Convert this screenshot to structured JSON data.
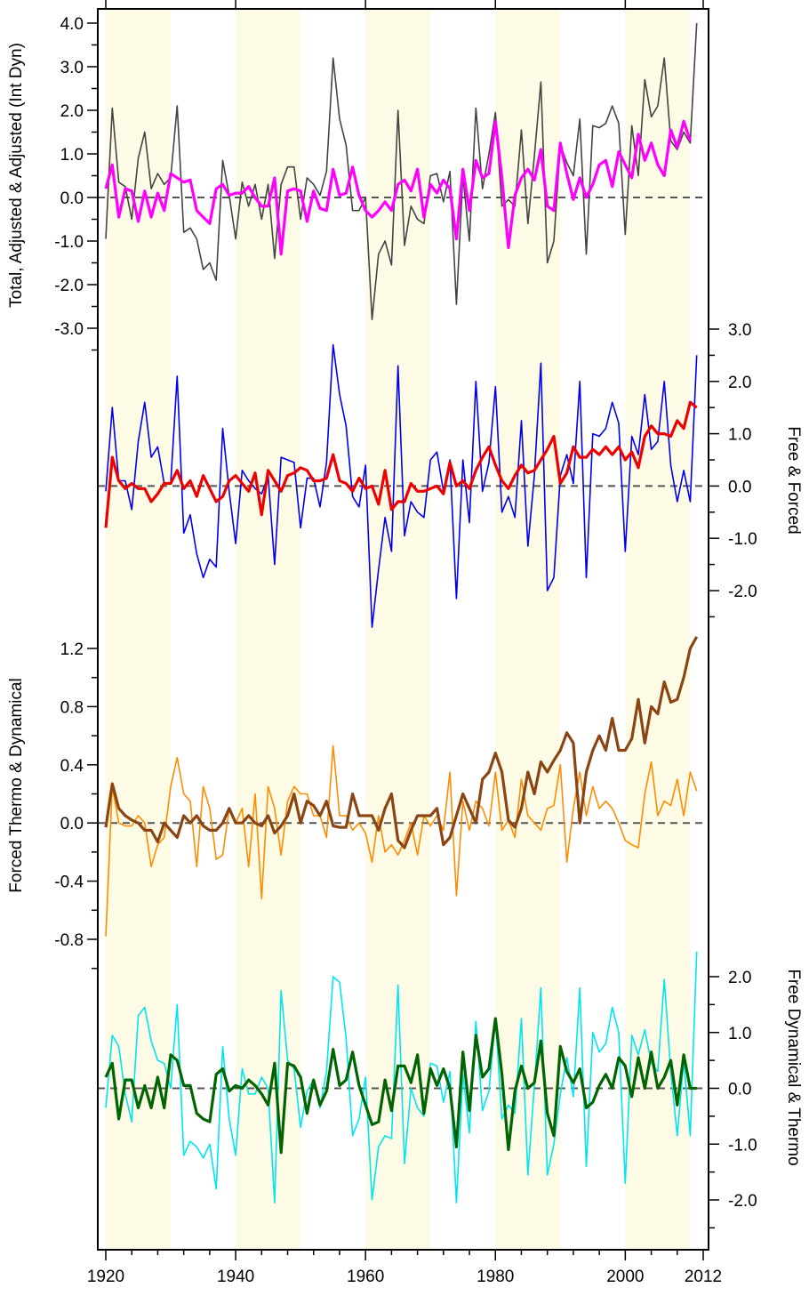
{
  "chart_data": {
    "type": "line",
    "x_range": [
      1920,
      2012
    ],
    "x_ticks": [
      1920,
      1940,
      1960,
      1980,
      2000,
      2012
    ],
    "x_tick_labels": [
      "1920",
      "1940",
      "1960",
      "1980",
      "2000",
      "2012"
    ],
    "shaded_decades": [
      [
        1920,
        1930
      ],
      [
        1940,
        1950
      ],
      [
        1960,
        1970
      ],
      [
        1980,
        1990
      ],
      [
        2000,
        2010
      ]
    ],
    "shade_color": "#fdfbe6",
    "panels": [
      {
        "id": "p1",
        "ylabel": "Total, Adjusted & Adjusted (Int Dyn)",
        "axis_side": "left",
        "ylim": [
          -3.0,
          4.0
        ],
        "y_ticks": [
          -3.0,
          -2.0,
          -1.0,
          0.0,
          1.0,
          2.0,
          3.0,
          4.0
        ],
        "y_tick_labels": [
          "-3.0",
          "-2.0",
          "-1.0",
          "0.0",
          "1.0",
          "2.0",
          "3.0",
          "4.0"
        ],
        "series": [
          {
            "color": "#444444",
            "width": 1.6,
            "values": [
              -0.95,
              2.05,
              0.35,
              0.25,
              -0.5,
              0.9,
              1.5,
              0.2,
              0.55,
              0.3,
              0.45,
              2.1,
              -0.8,
              -0.7,
              -0.95,
              -1.65,
              -1.5,
              -1.9,
              0.85,
              0.05,
              -0.95,
              0.35,
              -0.2,
              0.3,
              -0.5,
              0.3,
              -1.4,
              0.3,
              0.7,
              0.7,
              -0.5,
              0.45,
              0.3,
              0.05,
              0.6,
              3.2,
              1.8,
              1.2,
              -0.3,
              -0.3,
              0.0,
              -2.8,
              -1.3,
              -1.0,
              -1.55,
              2.0,
              -1.1,
              -0.2,
              -0.5,
              -0.6,
              0.5,
              0.55,
              -0.1,
              0.6,
              -2.45,
              0.5,
              -1.0,
              2.05,
              0.2,
              1.0,
              1.95,
              -0.2,
              -0.05,
              -0.2,
              1.55,
              -0.6,
              0.95,
              2.65,
              -1.5,
              -1.0,
              1.2,
              0.8,
              0.5,
              1.8,
              -1.3,
              1.65,
              1.6,
              1.7,
              2.1,
              1.7,
              -0.85,
              1.65,
              0.5,
              2.7,
              1.85,
              2.1,
              3.2,
              1.3,
              1.1,
              1.5,
              1.25,
              4.0
            ]
          },
          {
            "color": "#ff00ff",
            "width": 3.2,
            "values": [
              0.2,
              0.75,
              -0.45,
              0.2,
              0.15,
              -0.55,
              0.15,
              -0.45,
              0.1,
              -0.3,
              0.55,
              0.45,
              0.35,
              0.4,
              -0.3,
              -0.45,
              -0.6,
              0.2,
              0.3,
              0.05,
              0.1,
              0.1,
              0.25,
              0.0,
              -0.2,
              -0.2,
              0.45,
              -1.3,
              0.15,
              0.2,
              0.15,
              -0.55,
              0.15,
              -0.25,
              -0.3,
              0.65,
              0.05,
              0.1,
              0.7,
              0.05,
              -0.3,
              -0.45,
              -0.3,
              -0.1,
              -0.3,
              0.3,
              0.4,
              0.15,
              0.65,
              -0.45,
              0.3,
              0.1,
              0.4,
              0.2,
              -0.95,
              0.65,
              -0.3,
              0.85,
              0.45,
              0.55,
              1.75,
              0.45,
              -1.15,
              0.05,
              0.45,
              0.65,
              0.4,
              1.1,
              -0.2,
              -0.3,
              1.25,
              0.55,
              -0.05,
              0.45,
              0.0,
              0.3,
              0.75,
              0.85,
              0.25,
              1.05,
              0.75,
              0.45,
              1.45,
              0.85,
              1.25,
              0.75,
              0.5,
              1.55,
              1.15,
              1.75,
              1.3
            ]
          }
        ]
      },
      {
        "id": "p2",
        "ylabel": "Free & Forced",
        "axis_side": "right",
        "ylim": [
          -3.0,
          3.0
        ],
        "y_ticks": [
          -2.0,
          -1.0,
          0.0,
          1.0,
          2.0,
          3.0
        ],
        "y_tick_labels": [
          "-2.0",
          "-1.0",
          "0.0",
          "1.0",
          "2.0",
          "3.0"
        ],
        "series": [
          {
            "color": "#0000ee",
            "width": 1.6,
            "values": [
              -0.1,
              1.5,
              0.1,
              0.1,
              -0.45,
              0.85,
              1.6,
              0.55,
              0.75,
              0.05,
              0.05,
              2.1,
              -0.9,
              -0.55,
              -1.3,
              -1.75,
              -1.4,
              -1.55,
              1.1,
              -0.1,
              -1.1,
              0.3,
              0.1,
              -0.05,
              -0.15,
              0.2,
              -1.5,
              0.55,
              0.5,
              0.45,
              -0.8,
              0.15,
              0.15,
              -0.4,
              0.45,
              2.7,
              1.75,
              1.15,
              -0.2,
              -0.4,
              0.4,
              -2.7,
              -1.6,
              -0.6,
              -1.25,
              2.3,
              -0.95,
              -0.3,
              -0.5,
              -0.6,
              0.5,
              0.65,
              -0.1,
              0.5,
              -2.15,
              0.5,
              -0.7,
              2.0,
              -0.1,
              0.45,
              1.9,
              -0.5,
              -0.2,
              -0.6,
              1.25,
              -1.15,
              0.2,
              2.35,
              -2.0,
              -1.75,
              0.2,
              0.6,
              0.05,
              2.0,
              -1.75,
              1.0,
              0.95,
              1.1,
              1.6,
              1.2,
              -1.25,
              0.95,
              0.6,
              1.75,
              0.7,
              0.85,
              2.0,
              0.4,
              -0.3,
              0.3,
              -0.3,
              2.5
            ]
          },
          {
            "color": "#ee0000",
            "width": 3.2,
            "values": [
              -0.8,
              0.55,
              0.1,
              -0.05,
              0.05,
              -0.05,
              -0.05,
              -0.3,
              -0.15,
              0.05,
              0.05,
              0.3,
              -0.05,
              0.1,
              -0.2,
              0.2,
              -0.05,
              -0.3,
              -0.2,
              0.1,
              0.2,
              0.05,
              -0.1,
              0.25,
              -0.55,
              0.3,
              0.1,
              -0.1,
              0.2,
              0.25,
              0.35,
              0.3,
              0.1,
              0.1,
              0.15,
              0.6,
              0.1,
              0.05,
              -0.1,
              0.15,
              -0.05,
              0.0,
              -0.35,
              0.3,
              -0.45,
              -0.3,
              -0.3,
              0.05,
              -0.1,
              -0.1,
              -0.05,
              0.0,
              -0.15,
              0.45,
              0.0,
              0.1,
              -0.05,
              0.3,
              0.55,
              0.75,
              0.4,
              0.1,
              -0.05,
              0.2,
              0.4,
              0.25,
              0.3,
              0.5,
              0.7,
              0.95,
              0.05,
              0.25,
              0.75,
              0.55,
              0.55,
              0.7,
              0.6,
              0.75,
              0.6,
              0.75,
              0.5,
              0.65,
              0.35,
              0.95,
              1.15,
              1.0,
              1.0,
              0.95,
              1.25,
              1.1,
              1.6,
              1.5
            ]
          }
        ]
      },
      {
        "id": "p3",
        "ylabel": "Forced Thermo & Dynamical",
        "axis_side": "left",
        "ylim": [
          -0.8,
          1.2
        ],
        "y_ticks": [
          -0.8,
          -0.4,
          0.0,
          0.4,
          0.8,
          1.2
        ],
        "y_tick_labels": [
          "-0.8",
          "-0.4",
          "0.0",
          "0.4",
          "0.8",
          "1.2"
        ],
        "series": [
          {
            "color": "#ff8c00",
            "width": 1.6,
            "values": [
              -0.78,
              0.25,
              0.0,
              -0.02,
              -0.02,
              0.05,
              0.0,
              -0.3,
              -0.15,
              -0.1,
              0.25,
              0.45,
              0.2,
              0.15,
              -0.3,
              0.25,
              0.1,
              -0.25,
              -0.22,
              0.1,
              0.0,
              0.1,
              -0.3,
              0.2,
              -0.52,
              0.25,
              0.1,
              -0.22,
              0.15,
              0.25,
              0.2,
              0.2,
              0.05,
              0.05,
              -0.1,
              0.53,
              0.05,
              0.05,
              -0.05,
              0.0,
              -0.07,
              -0.27,
              0.05,
              -0.2,
              -0.15,
              -0.22,
              -0.12,
              0.0,
              -0.22,
              0.05,
              -0.02,
              0.05,
              -0.05,
              0.35,
              -0.5,
              0.15,
              -0.05,
              0.15,
              0.1,
              -0.02,
              0.35,
              -0.05,
              0.02,
              -0.1,
              0.3,
              0.05,
              0.0,
              -0.05,
              0.1,
              0.12,
              0.4,
              -0.27,
              0.1,
              0.35,
              0.05,
              0.25,
              0.1,
              0.15,
              0.1,
              0.0,
              -0.12,
              -0.15,
              -0.17,
              0.2,
              0.42,
              0.05,
              0.15,
              0.12,
              0.3,
              0.05,
              0.35,
              0.22
            ]
          },
          {
            "color": "#8b4513",
            "width": 3.2,
            "values": [
              -0.03,
              0.27,
              0.1,
              0.05,
              0.02,
              0.0,
              -0.05,
              -0.05,
              -0.13,
              0.0,
              -0.05,
              -0.1,
              0.05,
              0.0,
              0.05,
              -0.02,
              -0.05,
              -0.05,
              0.0,
              0.1,
              0.0,
              0.0,
              0.05,
              0.0,
              -0.02,
              0.05,
              -0.07,
              -0.02,
              0.05,
              0.2,
              0.0,
              0.15,
              0.12,
              0.05,
              0.15,
              -0.02,
              -0.03,
              -0.03,
              0.2,
              0.05,
              0.05,
              0.05,
              -0.05,
              0.1,
              0.2,
              -0.12,
              -0.17,
              -0.05,
              0.05,
              0.05,
              0.05,
              0.1,
              -0.15,
              -0.1,
              0.05,
              0.2,
              0.1,
              0.0,
              0.3,
              0.35,
              0.48,
              0.35,
              0.02,
              -0.03,
              0.1,
              0.35,
              0.2,
              0.42,
              0.35,
              0.43,
              0.5,
              0.62,
              0.55,
              0.0,
              0.35,
              0.5,
              0.6,
              0.5,
              0.72,
              0.5,
              0.5,
              0.58,
              0.85,
              0.55,
              0.8,
              0.75,
              0.97,
              0.83,
              0.85,
              1.0,
              1.2,
              1.28
            ]
          }
        ]
      },
      {
        "id": "p4",
        "ylabel": "Free Dynamical & Thermo",
        "axis_side": "right",
        "ylim": [
          -2.2,
          2.5
        ],
        "y_ticks": [
          -2.0,
          -1.0,
          0.0,
          1.0,
          2.0
        ],
        "y_tick_labels": [
          "-2.0",
          "-1.0",
          "0.0",
          "1.0",
          "2.0"
        ],
        "series": [
          {
            "color": "#00e5ee",
            "width": 1.6,
            "values": [
              -0.35,
              0.95,
              0.75,
              -0.1,
              -0.6,
              1.3,
              1.45,
              0.85,
              0.5,
              0.45,
              0.0,
              1.5,
              -1.2,
              -0.95,
              -1.05,
              -1.25,
              -1.0,
              -1.8,
              0.75,
              -0.55,
              -1.2,
              0.35,
              -0.1,
              -0.1,
              0.2,
              0.0,
              -2.05,
              1.75,
              0.5,
              0.35,
              -0.7,
              -0.05,
              0.15,
              -0.35,
              0.3,
              2.0,
              1.9,
              0.9,
              -0.85,
              -0.55,
              0.2,
              -2.0,
              -1.05,
              -0.85,
              -0.9,
              1.85,
              -1.35,
              0.0,
              -0.35,
              -0.5,
              0.45,
              0.4,
              -0.25,
              0.3,
              -2.05,
              0.25,
              -0.8,
              1.2,
              -0.4,
              -0.05,
              1.25,
              -0.55,
              -0.3,
              -0.45,
              1.25,
              -1.55,
              0.05,
              1.8,
              -1.55,
              -1.0,
              -0.1,
              0.55,
              -0.15,
              1.8,
              -1.4,
              1.0,
              0.65,
              0.8,
              1.45,
              1.0,
              -1.7,
              0.95,
              0.6,
              1.05,
              0.45,
              0.3,
              1.95,
              0.3,
              -0.85,
              0.5,
              -0.85,
              2.45
            ]
          },
          {
            "color": "#006400",
            "width": 3.2,
            "values": [
              0.2,
              0.45,
              -0.55,
              0.15,
              0.15,
              -0.35,
              0.05,
              -0.35,
              0.2,
              -0.35,
              0.6,
              0.5,
              0.05,
              0.05,
              -0.45,
              -0.55,
              -0.6,
              0.25,
              0.35,
              -0.05,
              0.05,
              0.0,
              0.15,
              0.05,
              -0.1,
              -0.3,
              0.45,
              -1.15,
              0.45,
              0.4,
              0.2,
              -0.45,
              0.15,
              -0.3,
              -0.05,
              0.7,
              0.05,
              0.15,
              0.65,
              0.05,
              -0.3,
              -0.65,
              -0.6,
              0.15,
              -0.4,
              0.4,
              0.4,
              0.1,
              0.6,
              -0.45,
              0.35,
              0.05,
              0.35,
              0.0,
              -1.05,
              0.65,
              -0.4,
              0.95,
              0.2,
              0.35,
              1.25,
              0.25,
              -1.1,
              -0.05,
              0.4,
              0.0,
              0.1,
              0.85,
              -0.45,
              -0.85,
              0.75,
              0.3,
              0.1,
              0.35,
              -0.35,
              -0.25,
              0.05,
              0.25,
              0.0,
              0.55,
              0.4,
              -0.15,
              0.55,
              0.0,
              0.65,
              0.0,
              0.2,
              0.5,
              -0.3,
              0.6,
              0.0,
              0.0
            ]
          }
        ]
      }
    ]
  }
}
